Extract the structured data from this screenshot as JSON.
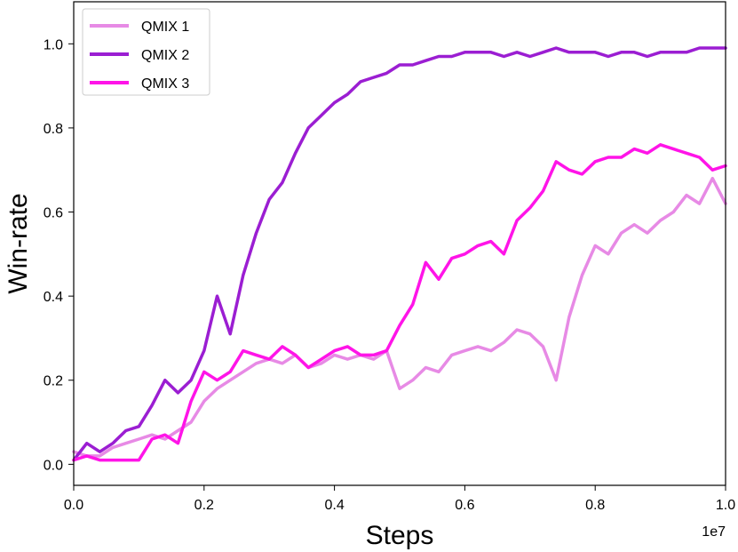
{
  "chart_data": {
    "type": "line",
    "xlabel": "Steps",
    "ylabel": "Win-rate",
    "x_scale_label": "1e7",
    "xlim": [
      0,
      1.0
    ],
    "ylim": [
      -0.05,
      1.1
    ],
    "xticks": [
      "0.0",
      "0.2",
      "0.4",
      "0.6",
      "0.8",
      "1.0"
    ],
    "yticks": [
      "0.0",
      "0.2",
      "0.4",
      "0.6",
      "0.8",
      "1.0"
    ],
    "grid": false,
    "legend_position": "top-left",
    "x": [
      0.0,
      0.02,
      0.04,
      0.06,
      0.08,
      0.1,
      0.12,
      0.14,
      0.16,
      0.18,
      0.2,
      0.22,
      0.24,
      0.26,
      0.28,
      0.3,
      0.32,
      0.34,
      0.36,
      0.38,
      0.4,
      0.42,
      0.44,
      0.46,
      0.48,
      0.5,
      0.52,
      0.54,
      0.56,
      0.58,
      0.6,
      0.62,
      0.64,
      0.66,
      0.68,
      0.7,
      0.72,
      0.74,
      0.76,
      0.78,
      0.8,
      0.82,
      0.84,
      0.86,
      0.88,
      0.9,
      0.92,
      0.94,
      0.96,
      0.98,
      1.0
    ],
    "series": [
      {
        "name": "QMIX 1",
        "color": "#e78ae5",
        "values": [
          0.03,
          0.02,
          0.02,
          0.04,
          0.05,
          0.06,
          0.07,
          0.06,
          0.08,
          0.1,
          0.15,
          0.18,
          0.2,
          0.22,
          0.24,
          0.25,
          0.24,
          0.26,
          0.23,
          0.24,
          0.26,
          0.25,
          0.26,
          0.25,
          0.27,
          0.18,
          0.2,
          0.23,
          0.22,
          0.26,
          0.27,
          0.28,
          0.27,
          0.29,
          0.32,
          0.31,
          0.28,
          0.2,
          0.35,
          0.45,
          0.52,
          0.5,
          0.55,
          0.57,
          0.55,
          0.58,
          0.6,
          0.64,
          0.62,
          0.68,
          0.62
        ]
      },
      {
        "name": "QMIX 2",
        "color": "#9b1ed2",
        "values": [
          0.01,
          0.05,
          0.03,
          0.05,
          0.08,
          0.09,
          0.14,
          0.2,
          0.17,
          0.2,
          0.27,
          0.4,
          0.31,
          0.45,
          0.55,
          0.63,
          0.67,
          0.74,
          0.8,
          0.83,
          0.86,
          0.88,
          0.91,
          0.92,
          0.93,
          0.95,
          0.95,
          0.96,
          0.97,
          0.97,
          0.98,
          0.98,
          0.98,
          0.97,
          0.98,
          0.97,
          0.98,
          0.99,
          0.98,
          0.98,
          0.98,
          0.97,
          0.98,
          0.98,
          0.97,
          0.98,
          0.98,
          0.98,
          0.99,
          0.99,
          0.99
        ]
      },
      {
        "name": "QMIX 3",
        "color": "#ff14e8",
        "values": [
          0.01,
          0.02,
          0.01,
          0.01,
          0.01,
          0.01,
          0.06,
          0.07,
          0.05,
          0.15,
          0.22,
          0.2,
          0.22,
          0.27,
          0.26,
          0.25,
          0.28,
          0.26,
          0.23,
          0.25,
          0.27,
          0.28,
          0.26,
          0.26,
          0.27,
          0.33,
          0.38,
          0.48,
          0.44,
          0.49,
          0.5,
          0.52,
          0.53,
          0.5,
          0.58,
          0.61,
          0.65,
          0.72,
          0.7,
          0.69,
          0.72,
          0.73,
          0.73,
          0.75,
          0.74,
          0.76,
          0.75,
          0.74,
          0.73,
          0.7,
          0.71
        ]
      }
    ]
  }
}
